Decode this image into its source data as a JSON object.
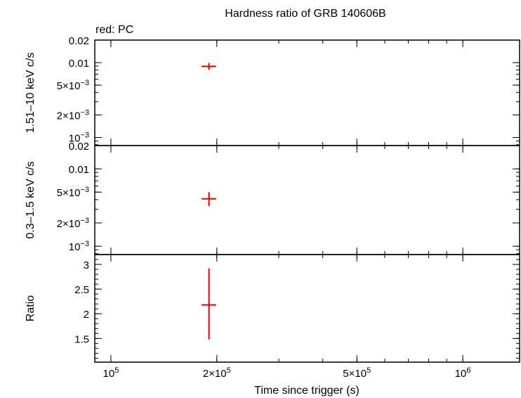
{
  "chart_data": {
    "type": "scatter",
    "title": "Hardness ratio of GRB 140606B",
    "legend_note": "red: PC",
    "xlabel": "Time since trigger (s)",
    "xscale": "log",
    "xlim": [
      90000,
      1450000
    ],
    "x_ticks": [
      {
        "value": 100000,
        "base": "10",
        "exp": "5"
      },
      {
        "value": 200000,
        "base": "2×10",
        "exp": "5"
      },
      {
        "value": 500000,
        "base": "5×10",
        "exp": "5"
      },
      {
        "value": 1000000,
        "base": "10",
        "exp": "6"
      }
    ],
    "series_color": "#e00000",
    "panels": [
      {
        "id": "hard",
        "ylabel": "1.51–10 keV c/s",
        "yscale": "log",
        "ylim": [
          0.00078,
          0.02
        ],
        "y_ticks": [
          {
            "value": 0.02,
            "text": "0.02"
          },
          {
            "value": 0.01,
            "text": "0.01"
          },
          {
            "value": 0.005,
            "base": "5×10",
            "exp": "−3"
          },
          {
            "value": 0.002,
            "base": "2×10",
            "exp": "−3"
          },
          {
            "value": 0.001,
            "base": "10",
            "exp": "−3"
          }
        ],
        "points": [
          {
            "x": 190000,
            "xerr": [
              181000,
              199000
            ],
            "y": 0.0089,
            "yerr": [
              0.008,
              0.0099
            ]
          }
        ]
      },
      {
        "id": "soft",
        "ylabel": "0.3–1.5 keV c/s",
        "yscale": "log",
        "ylim": [
          0.00078,
          0.02
        ],
        "y_ticks": [
          {
            "value": 0.02,
            "text": "0.02"
          },
          {
            "value": 0.01,
            "text": "0.01"
          },
          {
            "value": 0.005,
            "base": "5×10",
            "exp": "−3"
          },
          {
            "value": 0.002,
            "base": "2×10",
            "exp": "−3"
          },
          {
            "value": 0.001,
            "base": "10",
            "exp": "−3"
          }
        ],
        "points": [
          {
            "x": 190000,
            "xerr": [
              181000,
              199000
            ],
            "y": 0.0041,
            "yerr": [
              0.0033,
              0.005
            ]
          }
        ]
      },
      {
        "id": "ratio",
        "ylabel": "Ratio",
        "yscale": "linear",
        "ylim": [
          1.02,
          3.2
        ],
        "y_ticks": [
          {
            "value": 3,
            "text": "3"
          },
          {
            "value": 2.5,
            "text": "2.5"
          },
          {
            "value": 2,
            "text": "2"
          },
          {
            "value": 1.5,
            "text": "1.5"
          }
        ],
        "points": [
          {
            "x": 190000,
            "xerr": [
              181000,
              199000
            ],
            "y": 2.18,
            "yerr": [
              1.48,
              2.92
            ]
          }
        ]
      }
    ]
  }
}
